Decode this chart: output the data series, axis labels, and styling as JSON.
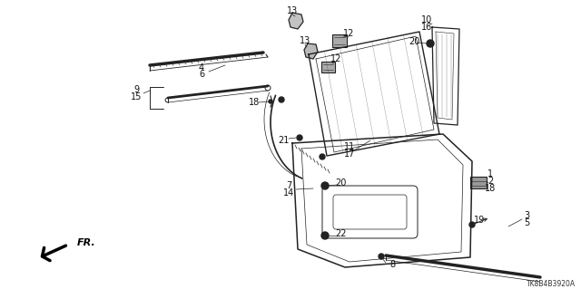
{
  "bg_color": "#ffffff",
  "line_color": "#222222",
  "text_color": "#111111",
  "footer_code": "TK8B4B3920A",
  "figsize": [
    6.4,
    3.19
  ],
  "dpi": 100
}
